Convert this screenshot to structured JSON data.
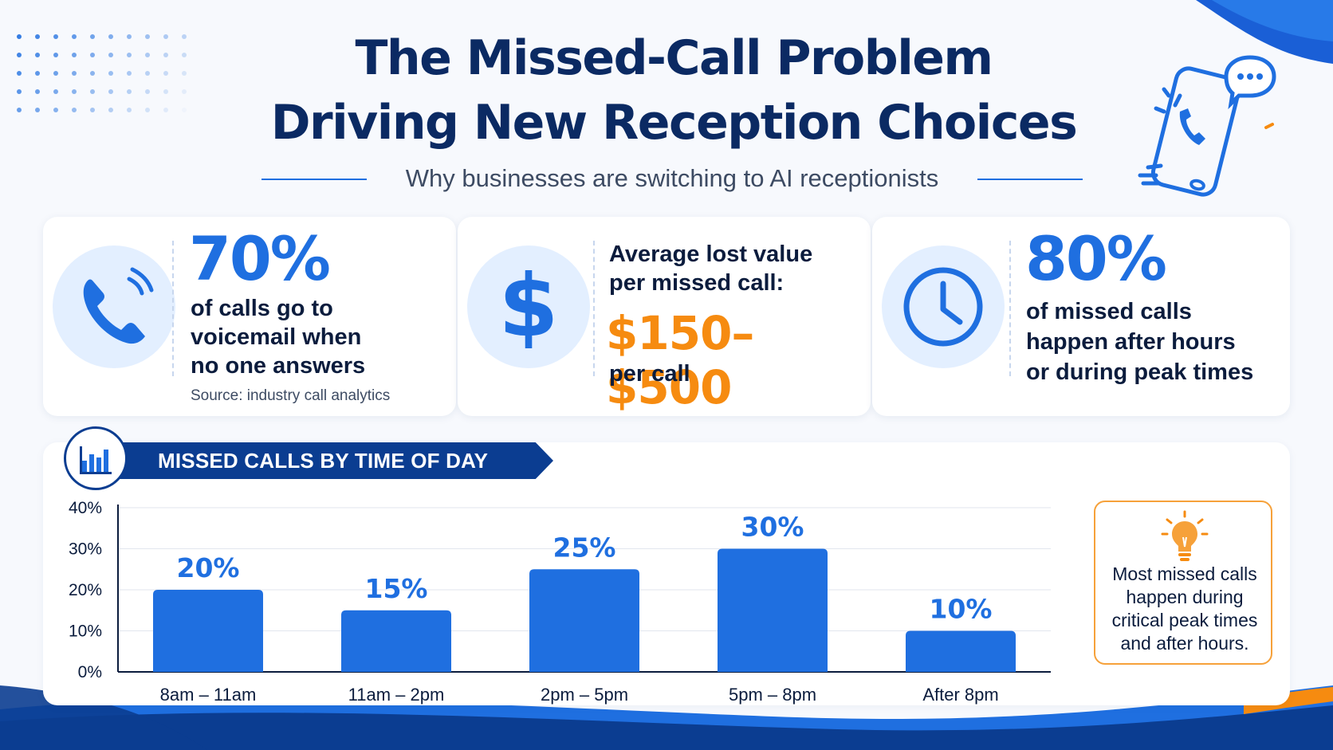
{
  "header": {
    "title_line1": "The Missed-Call Problem",
    "title_line2": "Driving New Reception Choices",
    "subtitle": "Why businesses are switching to AI receptionists"
  },
  "cards": [
    {
      "icon": "phone-icon",
      "stat": "70%",
      "text_lines": [
        "of calls go to",
        "voicemail when",
        "no one answers"
      ],
      "source": "Source: industry call analytics"
    },
    {
      "icon": "dollar-icon",
      "label_lines": [
        "Average lost value",
        "per missed call:"
      ],
      "value": "$150–$500",
      "suffix": "per call",
      "dollar_symbol": "$"
    },
    {
      "icon": "clock-icon",
      "stat": "80%",
      "text_lines": [
        "of missed calls",
        "happen after hours",
        "or during peak times"
      ]
    }
  ],
  "chart_data": {
    "type": "bar",
    "title": "MISSED CALLS BY TIME OF DAY",
    "categories": [
      "8am – 11am",
      "11am – 2pm",
      "2pm – 5pm",
      "5pm – 8pm",
      "After 8pm"
    ],
    "values": [
      20,
      15,
      25,
      30,
      10
    ],
    "value_labels": [
      "20%",
      "15%",
      "25%",
      "30%",
      "10%"
    ],
    "y_ticks": [
      0,
      10,
      20,
      30,
      40
    ],
    "y_tick_labels": [
      "0%",
      "10%",
      "20%",
      "30%",
      "40%"
    ],
    "ylim": [
      0,
      40
    ],
    "xlabel": "",
    "ylabel": "",
    "grid": true,
    "bar_color": "#1f6fe0",
    "label_color": "#1f6fe0"
  },
  "insight": {
    "icon": "lightbulb-icon",
    "text": "Most missed calls happen during critical peak times and after hours."
  },
  "colors": {
    "navy": "#0b2a63",
    "accent_blue": "#1f6fe0",
    "accent_orange": "#f68b10",
    "icon_bg": "#e3efff"
  }
}
